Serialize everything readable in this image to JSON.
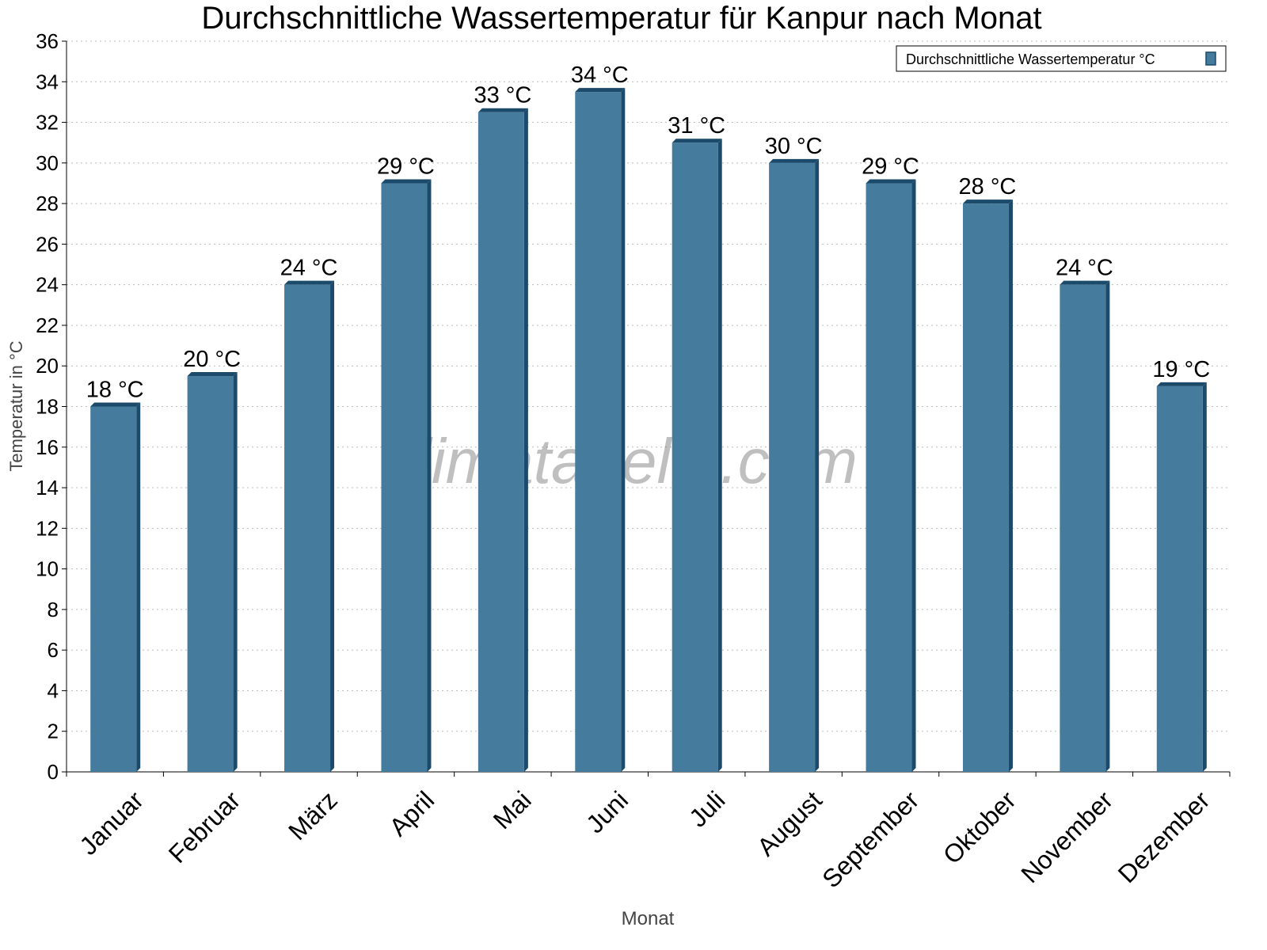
{
  "chart_data": {
    "type": "bar",
    "title": "Durchschnittliche Wassertemperatur für Kanpur nach Monat",
    "xlabel": "Monat",
    "ylabel": "Temperatur in °C",
    "ylim": [
      0,
      36
    ],
    "yticks": [
      0,
      2,
      4,
      6,
      8,
      10,
      12,
      14,
      16,
      18,
      20,
      22,
      24,
      26,
      28,
      30,
      32,
      34,
      36
    ],
    "grid": true,
    "legend_position": "top-right",
    "categories": [
      "Januar",
      "Februar",
      "März",
      "April",
      "Mai",
      "Juni",
      "Juli",
      "August",
      "September",
      "Oktober",
      "November",
      "Dezember"
    ],
    "series": [
      {
        "name": "Durchschnittliche Wassertemperatur °C",
        "values": [
          18,
          19.5,
          24,
          29,
          32.5,
          33.5,
          31,
          30,
          29,
          28,
          24,
          19
        ],
        "labels": [
          "18 °C",
          "20 °C",
          "24 °C",
          "29 °C",
          "33 °C",
          "34 °C",
          "31 °C",
          "30 °C",
          "29 °C",
          "28 °C",
          "24 °C",
          "19 °C"
        ],
        "color": "#457b9d",
        "edge_color": "#1b4a6b"
      }
    ],
    "watermark": "klimatabelle.com"
  }
}
